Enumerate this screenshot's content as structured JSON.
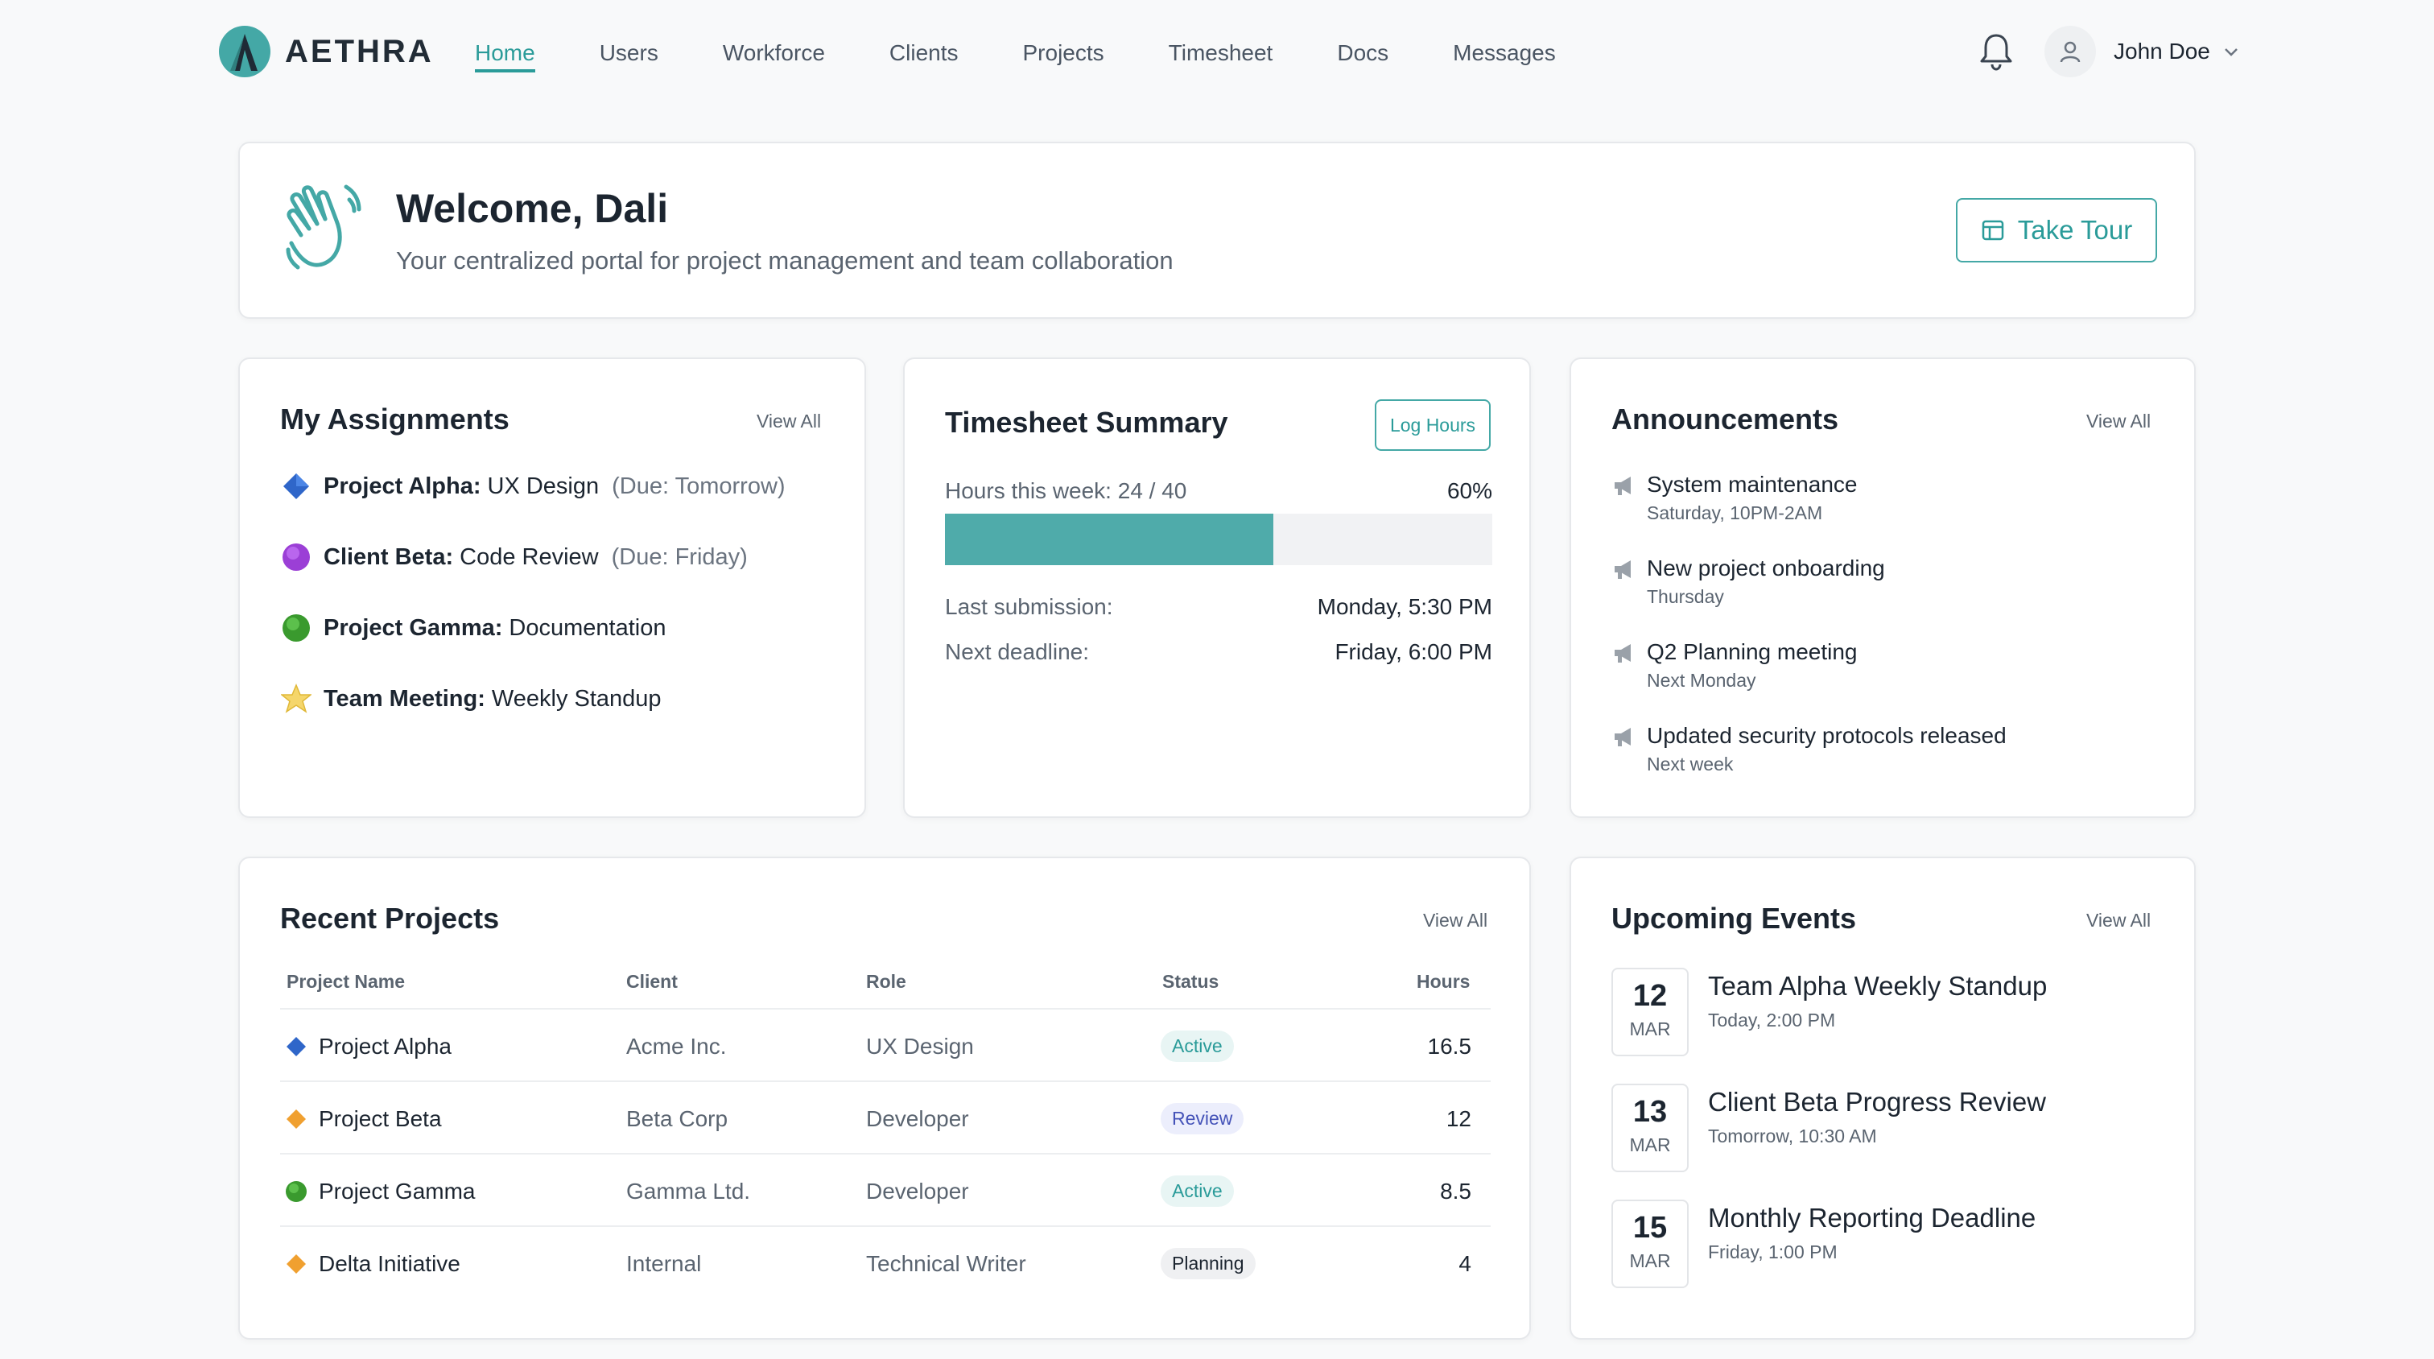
{
  "app": {
    "brand": "AETHRA"
  },
  "nav": {
    "links": [
      "Home",
      "Users",
      "Workforce",
      "Clients",
      "Projects",
      "Timesheet",
      "Docs",
      "Messages"
    ],
    "active": "Home"
  },
  "user": {
    "name": "John Doe"
  },
  "welcome": {
    "title": "Welcome, Dali",
    "subtitle": "Your centralized portal for project management and team collaboration",
    "tour_button": "Take Tour"
  },
  "assignments": {
    "title": "My Assignments",
    "view_all": "View All",
    "items": [
      {
        "icon": "blue-diamond-icon",
        "bold": "Project Alpha:",
        "text": "UX Design",
        "due": "(Due: Tomorrow)"
      },
      {
        "icon": "purple-circle-icon",
        "bold": "Client Beta:",
        "text": "Code Review",
        "due": "(Due: Friday)"
      },
      {
        "icon": "green-circle-icon",
        "bold": "Project Gamma:",
        "text": "Documentation",
        "due": ""
      },
      {
        "icon": "star-icon",
        "bold": "Team Meeting:",
        "text": "Weekly Standup",
        "due": ""
      }
    ]
  },
  "timesheet": {
    "title": "Timesheet Summary",
    "log_button": "Log Hours",
    "hours_label": "Hours this week: 24 / 40",
    "percent_label": "60%",
    "progress": 0.6,
    "last_label": "Last submission:",
    "last_value": "Monday, 5:30 PM",
    "next_label": "Next deadline:",
    "next_value": "Friday, 6:00 PM"
  },
  "announcements": {
    "title": "Announcements",
    "view_all": "View All",
    "items": [
      {
        "title": "System maintenance",
        "sub": "Saturday, 10PM-2AM"
      },
      {
        "title": "New project onboarding",
        "sub": "Thursday"
      },
      {
        "title": "Q2 Planning meeting",
        "sub": "Next Monday"
      },
      {
        "title": "Updated security protocols released",
        "sub": "Next week"
      }
    ]
  },
  "projects": {
    "title": "Recent Projects",
    "view_all": "View All",
    "headers": [
      "Project Name",
      "Client",
      "Role",
      "Status",
      "Hours"
    ],
    "rows": [
      {
        "icon": "blue-diamond-icon",
        "name": "Project Alpha",
        "client": "Acme Inc.",
        "role": "UX Design",
        "status": "Active",
        "hours": "16.5"
      },
      {
        "icon": "orange-diamond-icon",
        "name": "Project Beta",
        "client": "Beta Corp",
        "role": "Developer",
        "status": "Review",
        "hours": "12"
      },
      {
        "icon": "green-circle-icon",
        "name": "Project Gamma",
        "client": "Gamma Ltd.",
        "role": "Developer",
        "status": "Active",
        "hours": "8.5"
      },
      {
        "icon": "orange-diamond-icon",
        "name": "Delta Initiative",
        "client": "Internal",
        "role": "Technical Writer",
        "status": "Planning",
        "hours": "4"
      }
    ]
  },
  "events": {
    "title": "Upcoming Events",
    "view_all": "View All",
    "items": [
      {
        "day": "12",
        "month": "MAR",
        "title": "Team Alpha Weekly Standup",
        "sub": "Today, 2:00 PM"
      },
      {
        "day": "13",
        "month": "MAR",
        "title": "Client Beta Progress Review",
        "sub": "Tomorrow, 10:30 AM"
      },
      {
        "day": "15",
        "month": "MAR",
        "title": "Monthly Reporting Deadline",
        "sub": "Friday, 1:00 PM"
      }
    ]
  },
  "colors": {
    "accent": "#2a9b99",
    "progress": "#4fabaa"
  }
}
